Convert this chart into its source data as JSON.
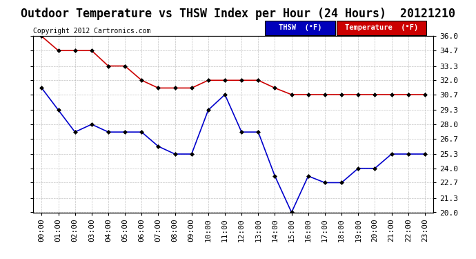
{
  "title": "Outdoor Temperature vs THSW Index per Hour (24 Hours)  20121210",
  "copyright": "Copyright 2012 Cartronics.com",
  "hours": [
    "00:00",
    "01:00",
    "02:00",
    "03:00",
    "04:00",
    "05:00",
    "06:00",
    "07:00",
    "08:00",
    "09:00",
    "10:00",
    "11:00",
    "12:00",
    "13:00",
    "14:00",
    "15:00",
    "16:00",
    "17:00",
    "18:00",
    "19:00",
    "20:00",
    "21:00",
    "22:00",
    "23:00"
  ],
  "temperature": [
    36.0,
    34.7,
    34.7,
    34.7,
    33.3,
    33.3,
    32.0,
    31.3,
    31.3,
    31.3,
    32.0,
    32.0,
    32.0,
    32.0,
    31.3,
    30.7,
    30.7,
    30.7,
    30.7,
    30.7,
    30.7,
    30.7,
    30.7,
    30.7
  ],
  "thsw": [
    31.3,
    29.3,
    27.3,
    28.0,
    27.3,
    27.3,
    27.3,
    26.0,
    25.3,
    25.3,
    29.3,
    30.7,
    27.3,
    27.3,
    23.3,
    20.0,
    23.3,
    22.7,
    22.7,
    24.0,
    24.0,
    25.3,
    25.3,
    25.3
  ],
  "ylim_min": 20.0,
  "ylim_max": 36.0,
  "yticks": [
    20.0,
    21.3,
    22.7,
    24.0,
    25.3,
    26.7,
    28.0,
    29.3,
    30.7,
    32.0,
    33.3,
    34.7,
    36.0
  ],
  "temp_color": "#cc0000",
  "thsw_color": "#0000cc",
  "background_color": "#ffffff",
  "plot_bg_color": "#ffffff",
  "grid_color": "#bbbbbb",
  "legend_thsw_bg": "#0000bb",
  "legend_temp_bg": "#cc0000",
  "title_fontsize": 12,
  "tick_fontsize": 8,
  "copyright_fontsize": 7,
  "marker": "D",
  "marker_size": 3,
  "linewidth": 1.2
}
